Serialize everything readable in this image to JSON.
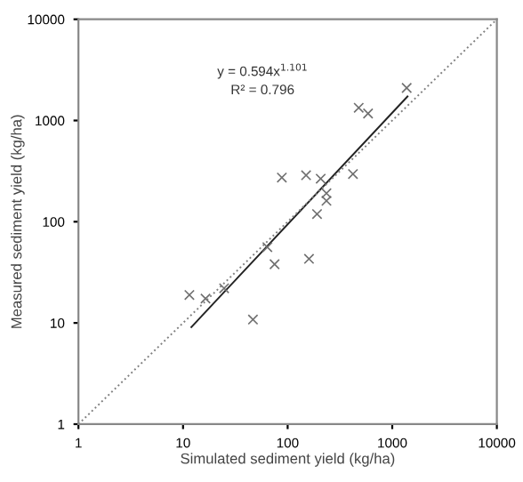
{
  "chart_data": {
    "type": "scatter",
    "xlabel": "Simulated sediment yield (kg/ha)",
    "ylabel": "Measured sediment yield (kg/ha)",
    "log": "xy",
    "xlim": [
      1,
      10000
    ],
    "ylim": [
      1,
      10000
    ],
    "xticks": [
      1,
      10,
      100,
      1000,
      10000
    ],
    "yticks": [
      1,
      10,
      100,
      1000,
      10000
    ],
    "grid": false,
    "legend": false,
    "annotations": [
      "y = 0.594x$^{1.101}$",
      "R² = 0.796"
    ],
    "series": [
      {
        "color": "#707070",
        "marker": "cross",
        "x": [
          11.5,
          16.4,
          24.7,
          46.6,
          64,
          75,
          88,
          150,
          160,
          191,
          207,
          235,
          235,
          421,
          478,
          587,
          1374
        ],
        "values": [
          18.9,
          17.4,
          22,
          10.8,
          56,
          38,
          273,
          288,
          43,
          119,
          266,
          191,
          161,
          296,
          1336,
          1172,
          2099
        ]
      },
      {
        "type": "line",
        "color": "#222222",
        "line_style": "solid",
        "x": [
          12,
          1400
        ],
        "values": [
          9.1,
          1728
        ]
      },
      {
        "type": "line",
        "color": "#808080",
        "line_style": "dotted",
        "x": [
          1,
          10000
        ],
        "values": [
          1,
          10000
        ]
      }
    ]
  }
}
